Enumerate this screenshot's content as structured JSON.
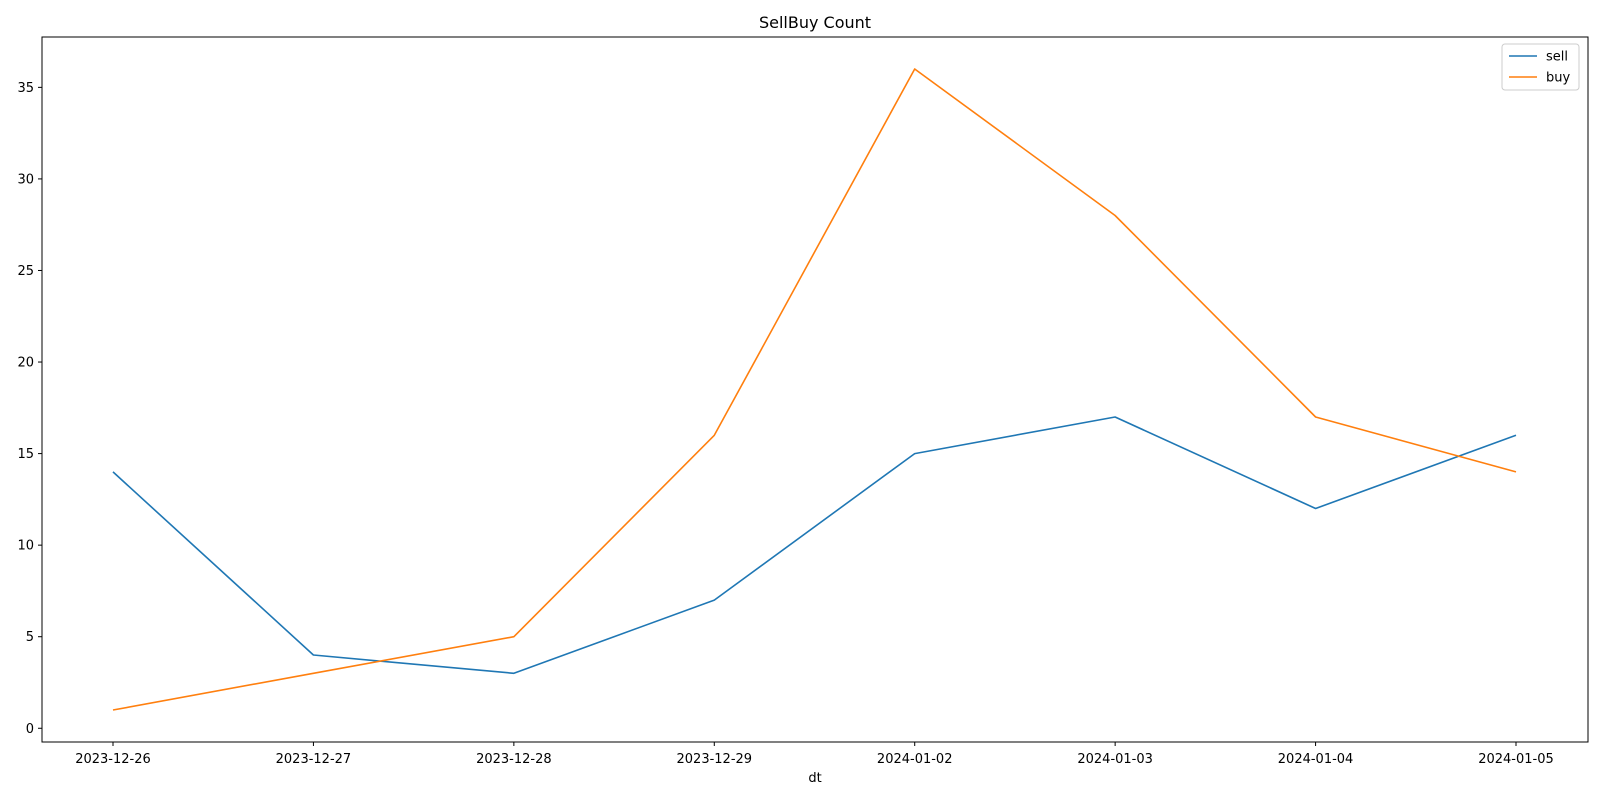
{
  "chart_data": {
    "type": "line",
    "title": "SellBuy Count",
    "xlabel": "dt",
    "ylabel": "",
    "x": [
      "2023-12-26",
      "2023-12-27",
      "2023-12-28",
      "2023-12-29",
      "2024-01-02",
      "2024-01-03",
      "2024-01-04",
      "2024-01-05"
    ],
    "series": [
      {
        "name": "sell",
        "color": "#1f77b4",
        "values": [
          14,
          4,
          3,
          7,
          15,
          17,
          12,
          16
        ]
      },
      {
        "name": "buy",
        "color": "#ff7f0e",
        "values": [
          1,
          3,
          5,
          16,
          36,
          28,
          17,
          14
        ]
      }
    ],
    "ylim": [
      -0.75,
      37.75
    ],
    "yticks": [
      0,
      5,
      10,
      15,
      20,
      25,
      30,
      35
    ],
    "grid": false,
    "legend_position": "top-right"
  }
}
